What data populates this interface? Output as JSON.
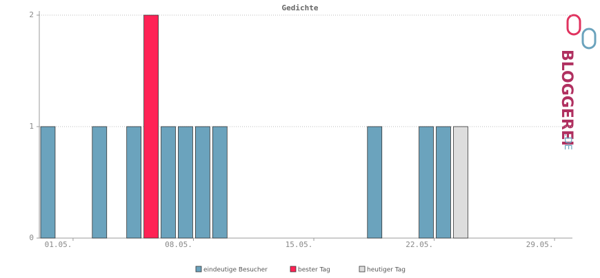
{
  "chart_data": {
    "type": "bar",
    "title": "Gedichte",
    "categories": [
      "01.05.",
      null,
      null,
      null,
      null,
      null,
      null,
      "08.05.",
      null,
      null,
      null,
      null,
      null,
      null,
      "15.05.",
      null,
      null,
      null,
      null,
      null,
      null,
      "22.05.",
      null,
      null,
      null,
      null,
      null,
      null,
      "29.05.",
      null,
      null
    ],
    "series": [
      {
        "name": "eindeutige Besucher",
        "color": "#6ba3bd",
        "values": [
          1,
          0,
          0,
          1,
          0,
          1,
          null,
          1,
          1,
          1,
          1,
          0,
          0,
          0,
          0,
          0,
          0,
          0,
          0,
          1,
          0,
          0,
          1,
          1,
          null,
          0,
          0,
          0,
          0,
          0,
          0
        ]
      },
      {
        "name": "bester Tag",
        "color": "#ff2255",
        "values": [
          null,
          null,
          null,
          null,
          null,
          null,
          2,
          null,
          null,
          null,
          null,
          null,
          null,
          null,
          null,
          null,
          null,
          null,
          null,
          null,
          null,
          null,
          null,
          null,
          null,
          null,
          null,
          null,
          null,
          null,
          null
        ]
      },
      {
        "name": "heutiger Tag",
        "color": "#dddddd",
        "values": [
          null,
          null,
          null,
          null,
          null,
          null,
          null,
          null,
          null,
          null,
          null,
          null,
          null,
          null,
          null,
          null,
          null,
          null,
          null,
          null,
          null,
          null,
          null,
          null,
          1,
          null,
          null,
          null,
          null,
          null,
          null
        ]
      }
    ],
    "ylim": [
      0,
      2
    ],
    "yticks": [
      0,
      1,
      2
    ],
    "grid": true
  },
  "logo": {
    "name": "BLOGGEREI",
    "suffix": ".DE"
  }
}
